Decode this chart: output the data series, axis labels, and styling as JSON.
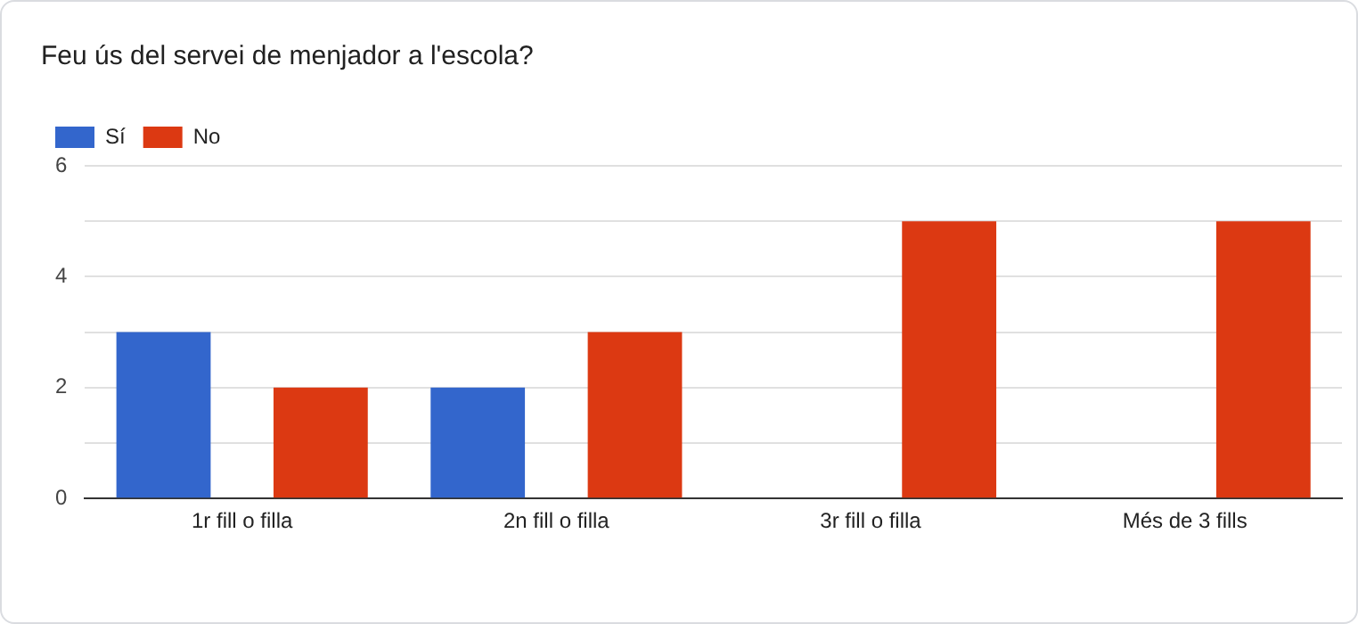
{
  "chart_data": {
    "type": "bar",
    "title": "Feu ús del servei de menjador a l'escola?",
    "categories": [
      "1r fill o filla",
      "2n fill o filla",
      "3r fill o filla",
      "Més de 3 fills"
    ],
    "series": [
      {
        "name": "Sí",
        "color": "#3366cc",
        "values": [
          3,
          2,
          0,
          0
        ]
      },
      {
        "name": "No",
        "color": "#dc3912",
        "values": [
          2,
          3,
          5,
          5
        ]
      }
    ],
    "ylim": [
      0,
      6
    ],
    "yticks": [
      0,
      {
        "value": 1,
        "label": null
      },
      2,
      {
        "value": 3,
        "label": null
      },
      4,
      {
        "value": 5,
        "label": null
      },
      6
    ],
    "grid": "y",
    "legend": "top left"
  }
}
